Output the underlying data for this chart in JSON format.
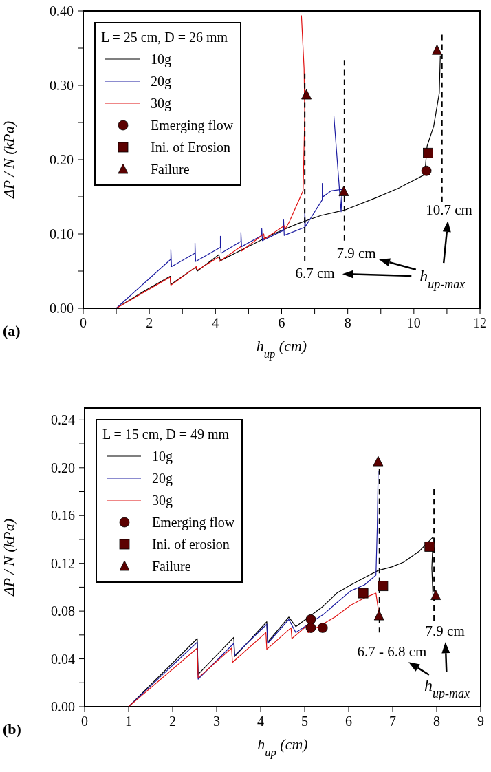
{
  "chart_data": [
    {
      "type": "line",
      "title": "(a)",
      "xlabel": "h$_{up}$ (cm)",
      "ylabel": "ΔP / N (kPa)",
      "legend_title": "L = 25 cm, D = 26 mm",
      "legend": "top left",
      "xlim": [
        0,
        12
      ],
      "xticks": [
        0,
        {
          "value": 1,
          "label": null
        },
        2,
        {
          "value": 3,
          "label": null
        },
        4,
        {
          "value": 5,
          "label": null
        },
        6,
        {
          "value": 7,
          "label": null
        },
        8,
        {
          "value": 9,
          "label": null
        },
        10,
        {
          "value": 11,
          "label": null
        },
        12
      ],
      "ylim": [
        0,
        0.4
      ],
      "yticks": [
        {
          "value": 0,
          "label": "0.00"
        },
        {
          "value": 0.05,
          "label": null
        },
        {
          "value": 0.1,
          "label": "0.10"
        },
        {
          "value": 0.15,
          "label": null
        },
        {
          "value": 0.2,
          "label": "0.20"
        },
        {
          "value": 0.25,
          "label": null
        },
        {
          "value": 0.3,
          "label": "0.30"
        },
        {
          "value": 0.35,
          "label": null
        },
        {
          "value": 0.4,
          "label": "0.40"
        }
      ],
      "series": [
        {
          "name": "10g",
          "type": "line",
          "color": "#000000",
          "x": [
            1,
            1.8,
            2.63,
            2.65,
            3.4,
            3.45,
            4.1,
            4.15,
            4.9,
            5.75,
            6.5,
            7.2,
            7.9,
            8.87,
            9.56,
            10.33,
            10.4,
            10.6,
            10.77,
            10.8
          ],
          "values": [
            0,
            0.022,
            0.043,
            0.032,
            0.055,
            0.05,
            0.072,
            0.064,
            0.081,
            0.1,
            0.114,
            0.125,
            0.132,
            0.149,
            0.162,
            0.18,
            0.218,
            0.245,
            0.29,
            0.34
          ]
        },
        {
          "name": "20g",
          "type": "line",
          "color": "#1a1aa0",
          "x": [
            1,
            2.65,
            2.65,
            2.67,
            3.38,
            3.38,
            3.4,
            4.15,
            4.15,
            4.17,
            4.77,
            4.77,
            4.79,
            5.4,
            5.4,
            5.42,
            6.06,
            6.06,
            6.08,
            6.7,
            6.7,
            6.72,
            7.23,
            7.23,
            7.25,
            7.5,
            7.83,
            7.8,
            7.58
          ],
          "values": [
            0,
            0.066,
            0.079,
            0.056,
            0.074,
            0.088,
            0.063,
            0.082,
            0.097,
            0.074,
            0.09,
            0.102,
            0.083,
            0.098,
            0.107,
            0.091,
            0.105,
            0.119,
            0.098,
            0.109,
            0.132,
            0.11,
            0.146,
            0.168,
            0.15,
            0.158,
            0.16,
            0.13,
            0.259
          ]
        },
        {
          "name": "30g",
          "type": "line",
          "color": "#e01010",
          "x": [
            1,
            2.63,
            2.65,
            3.42,
            3.44,
            4.1,
            4.12,
            4.77,
            4.79,
            5.46,
            5.48,
            6.08,
            6.1,
            6.23,
            6.65,
            6.7,
            6.68,
            6.6
          ],
          "values": [
            0,
            0.042,
            0.031,
            0.056,
            0.051,
            0.069,
            0.063,
            0.083,
            0.077,
            0.1,
            0.093,
            0.111,
            0.106,
            0.116,
            0.158,
            0.26,
            0.322,
            0.394
          ]
        },
        {
          "type": "line",
          "color": "#000000",
          "line_style": "dashed",
          "x": [
            6.7,
            6.7
          ],
          "values": [
            0.063,
            0.316
          ]
        },
        {
          "type": "line",
          "color": "#000000",
          "line_style": "dashed",
          "x": [
            7.9,
            7.9
          ],
          "values": [
            0.091,
            0.334
          ]
        },
        {
          "type": "line",
          "color": "#000000",
          "line_style": "dashed",
          "x": [
            10.85,
            10.85
          ],
          "values": [
            0.143,
            0.368
          ]
        },
        {
          "name": "Emerging flow",
          "type": "scatter",
          "marker": "circle",
          "color": "#5c0000",
          "x": [
            10.38
          ],
          "values": [
            0.185
          ]
        },
        {
          "name": "Ini. of Erosion",
          "type": "scatter",
          "marker": "square",
          "color": "#5c0000",
          "x": [
            10.43
          ],
          "values": [
            0.209
          ]
        },
        {
          "name": "Failure",
          "type": "scatter",
          "marker": "triangle",
          "color": "#5c0000",
          "x": [
            10.7,
            7.88,
            6.75
          ],
          "values": [
            0.347,
            0.157,
            0.287
          ]
        }
      ],
      "annotations": [
        "10.7 cm",
        "7.9 cm",
        "6.7 cm",
        "h$_{up-max}$"
      ]
    },
    {
      "type": "line",
      "title": "(b)",
      "xlabel": "h$_{up}$ (cm)",
      "ylabel": "ΔP / N (kPa)",
      "legend_title": "L = 15 cm, D = 49 mm",
      "legend": "top left",
      "xlim": [
        0,
        9
      ],
      "xticks": [
        0,
        1,
        2,
        3,
        4,
        5,
        6,
        7,
        8,
        9
      ],
      "ylim": [
        0,
        0.25
      ],
      "yticks": [
        {
          "value": 0,
          "label": "0.00"
        },
        {
          "value": 0.02,
          "label": null
        },
        {
          "value": 0.04,
          "label": "0.04"
        },
        {
          "value": 0.06,
          "label": null
        },
        {
          "value": 0.08,
          "label": "0.08"
        },
        {
          "value": 0.1,
          "label": null
        },
        {
          "value": 0.12,
          "label": "0.12"
        },
        {
          "value": 0.14,
          "label": null
        },
        {
          "value": 0.16,
          "label": "0.16"
        },
        {
          "value": 0.18,
          "label": null
        },
        {
          "value": 0.2,
          "label": "0.20"
        },
        {
          "value": 0.22,
          "label": null
        },
        {
          "value": 0.24,
          "label": "0.24"
        }
      ],
      "series": [
        {
          "name": "10g",
          "type": "line",
          "color": "#000000",
          "x": [
            1,
            2.56,
            2.58,
            3.39,
            3.41,
            4.14,
            4.16,
            4.64,
            4.8,
            5.42,
            5.73,
            6.05,
            6.36,
            6.67,
            6.98,
            7.25,
            7.6,
            7.92,
            7.89,
            7.92
          ],
          "values": [
            0,
            0.057,
            0.027,
            0.058,
            0.042,
            0.071,
            0.054,
            0.075,
            0.067,
            0.084,
            0.095,
            0.102,
            0.108,
            0.114,
            0.117,
            0.121,
            0.13,
            0.142,
            0.116,
            0.089
          ]
        },
        {
          "name": "20g",
          "type": "line",
          "color": "#1a1aa0",
          "x": [
            1,
            2.56,
            2.58,
            3.39,
            3.41,
            4.14,
            4.16,
            4.64,
            4.8,
            5.42,
            5.73,
            6.05,
            6.36,
            6.62,
            6.65,
            6.67
          ],
          "values": [
            0,
            0.054,
            0.023,
            0.053,
            0.043,
            0.069,
            0.053,
            0.073,
            0.062,
            0.077,
            0.087,
            0.097,
            0.102,
            0.11,
            0.15,
            0.197
          ]
        },
        {
          "name": "30g",
          "type": "line",
          "color": "#e01010",
          "x": [
            1,
            2.56,
            2.58,
            3.34,
            3.36,
            4.12,
            4.14,
            4.69,
            4.71,
            5.06,
            5.08,
            5.69,
            6.05,
            6.36,
            6.62,
            6.7
          ],
          "values": [
            0,
            0.049,
            0.024,
            0.049,
            0.037,
            0.062,
            0.048,
            0.066,
            0.057,
            0.068,
            0.062,
            0.075,
            0.085,
            0.091,
            0.095,
            0.075
          ]
        },
        {
          "type": "line",
          "color": "#000000",
          "line_style": "dashed",
          "x": [
            6.7,
            6.7
          ],
          "values": [
            0.062,
            0.199
          ]
        },
        {
          "type": "line",
          "color": "#000000",
          "line_style": "dashed",
          "x": [
            7.94,
            7.94
          ],
          "values": [
            0.072,
            0.182
          ]
        },
        {
          "name": "Emerging flow",
          "type": "scatter",
          "marker": "circle",
          "color": "#5c0000",
          "x": [
            5.14,
            5.14,
            5.41
          ],
          "values": [
            0.073,
            0.066,
            0.066
          ]
        },
        {
          "name": "Ini. of erosion",
          "type": "scatter",
          "marker": "square",
          "color": "#5c0000",
          "x": [
            6.33,
            6.78,
            7.84
          ],
          "values": [
            0.095,
            0.101,
            0.134
          ]
        },
        {
          "name": "Failure",
          "type": "scatter",
          "marker": "triangle",
          "color": "#5c0000",
          "x": [
            6.67,
            6.69,
            7.98
          ],
          "values": [
            0.205,
            0.076,
            0.093
          ]
        }
      ],
      "annotations": [
        "7.9 cm",
        "6.7 - 6.8 cm",
        "h$_{up-max}$"
      ]
    }
  ]
}
